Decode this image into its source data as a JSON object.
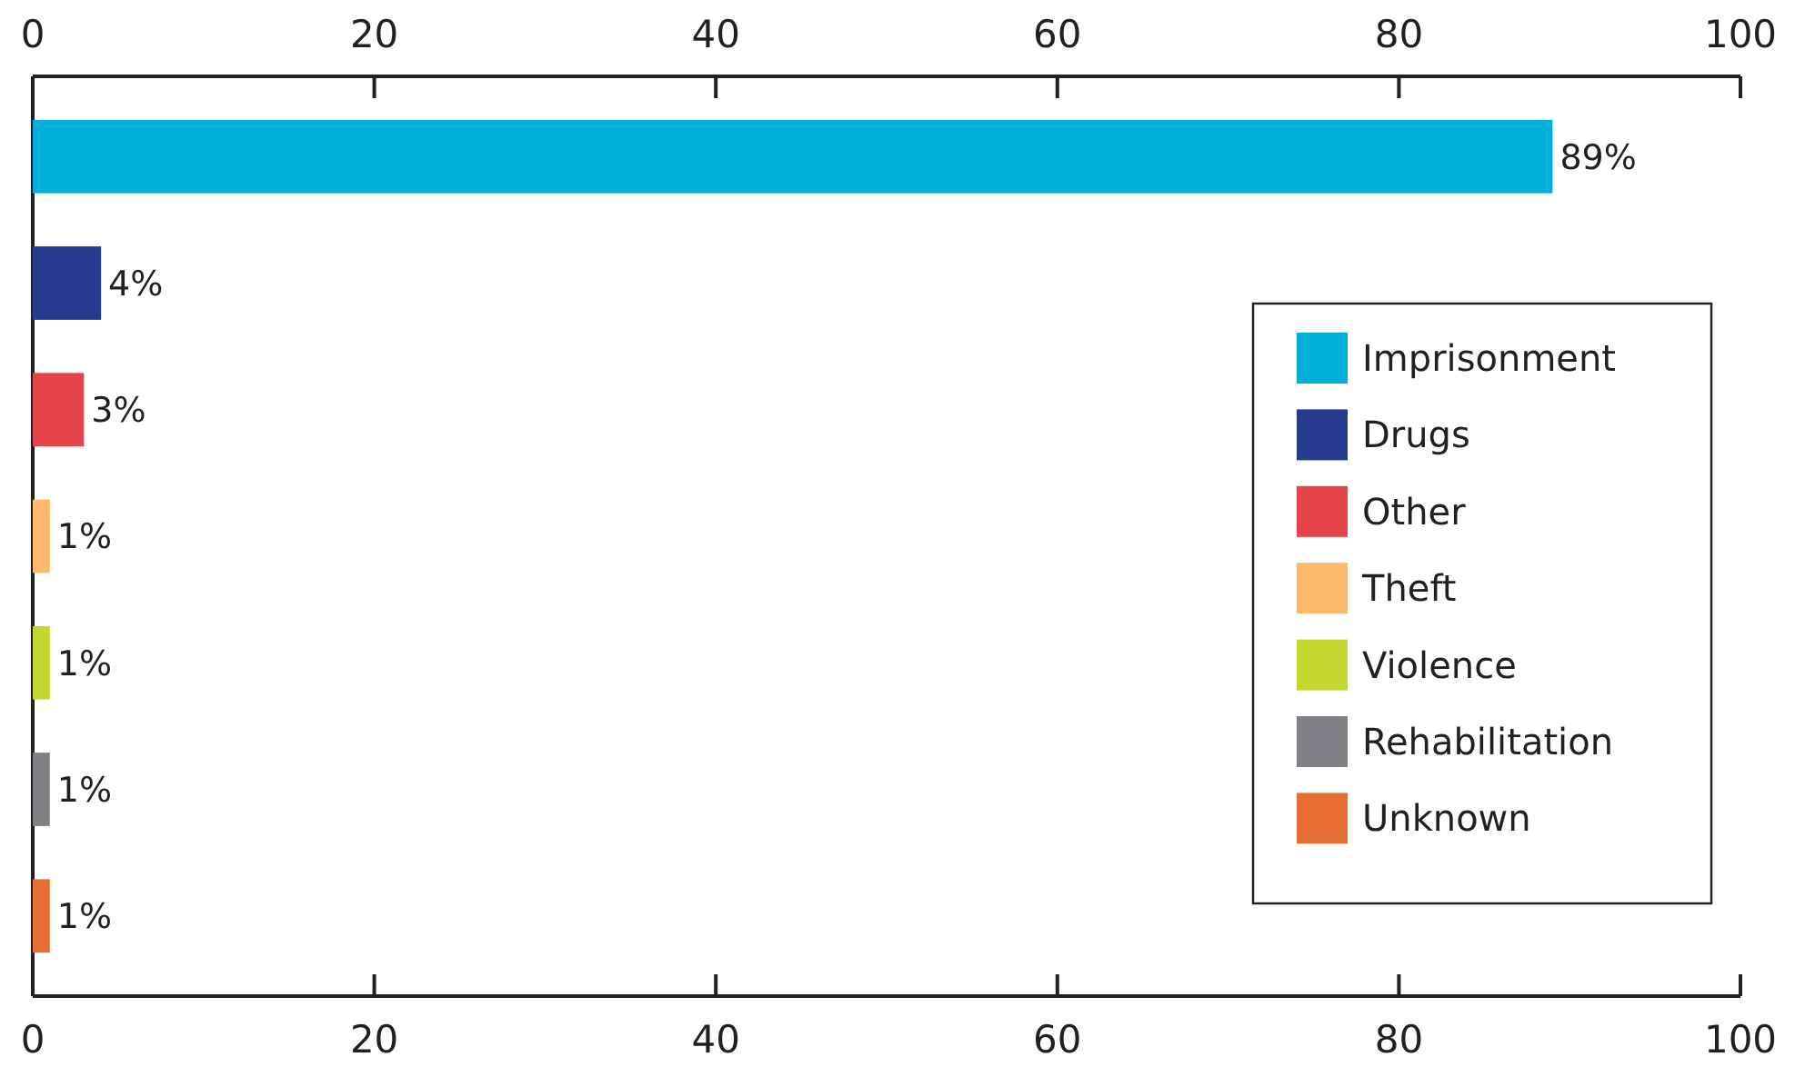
{
  "chart_data": {
    "type": "bar",
    "orientation": "horizontal",
    "categories": [
      null,
      null,
      null,
      null,
      null,
      null,
      null
    ],
    "series": [
      {
        "name": "Imprisonment",
        "color": "#00b0da",
        "values": [
          89,
          null,
          null,
          null,
          null,
          null,
          null
        ],
        "value_labels": [
          "89%",
          null,
          null,
          null,
          null,
          null,
          null
        ]
      },
      {
        "name": "Drugs",
        "color": "#263a8f",
        "values": [
          null,
          4,
          null,
          null,
          null,
          null,
          null
        ],
        "value_labels": [
          null,
          "4%",
          null,
          null,
          null,
          null,
          null
        ]
      },
      {
        "name": "Other",
        "color": "#e5424a",
        "values": [
          null,
          null,
          3,
          null,
          null,
          null,
          null
        ],
        "value_labels": [
          null,
          null,
          "3%",
          null,
          null,
          null,
          null
        ]
      },
      {
        "name": "Theft",
        "color": "#fdb96a",
        "values": [
          null,
          null,
          null,
          1,
          null,
          null,
          null
        ],
        "value_labels": [
          null,
          null,
          null,
          "1%",
          null,
          null,
          null
        ]
      },
      {
        "name": "Violence",
        "color": "#c3d72f",
        "values": [
          null,
          null,
          null,
          null,
          1,
          null,
          null
        ],
        "value_labels": [
          null,
          null,
          null,
          null,
          "1%",
          null,
          null
        ]
      },
      {
        "name": "Rehabilitation",
        "color": "#808184",
        "values": [
          null,
          null,
          null,
          null,
          null,
          1,
          null
        ],
        "value_labels": [
          null,
          null,
          null,
          null,
          null,
          "1%",
          null
        ]
      },
      {
        "name": "Unknown",
        "color": "#e86f34",
        "values": [
          null,
          null,
          null,
          null,
          null,
          null,
          1
        ],
        "value_labels": [
          null,
          null,
          null,
          null,
          null,
          null,
          "1%"
        ]
      }
    ],
    "xlim": [
      0,
      100
    ],
    "xticks": [
      0,
      20,
      40,
      60,
      80,
      100
    ],
    "x2lim": [
      0,
      100
    ],
    "x2ticks": [
      0,
      20,
      40,
      60,
      80,
      100
    ],
    "legend": "right"
  }
}
